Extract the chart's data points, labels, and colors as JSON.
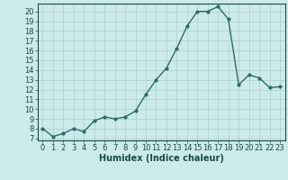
{
  "x": [
    0,
    1,
    2,
    3,
    4,
    5,
    6,
    7,
    8,
    9,
    10,
    11,
    12,
    13,
    14,
    15,
    16,
    17,
    18,
    19,
    20,
    21,
    22,
    23
  ],
  "y": [
    8.0,
    7.2,
    7.5,
    8.0,
    7.7,
    8.8,
    9.2,
    9.0,
    9.2,
    9.8,
    11.5,
    13.0,
    14.2,
    16.2,
    18.5,
    20.0,
    20.0,
    20.5,
    19.2,
    12.5,
    13.5,
    13.2,
    12.2,
    12.3
  ],
  "title": "",
  "xlabel": "Humidex (Indice chaleur)",
  "ylabel": "",
  "xlim": [
    -0.5,
    23.5
  ],
  "ylim": [
    6.8,
    20.8
  ],
  "yticks": [
    7,
    8,
    9,
    10,
    11,
    12,
    13,
    14,
    15,
    16,
    17,
    18,
    19,
    20
  ],
  "xticks": [
    0,
    1,
    2,
    3,
    4,
    5,
    6,
    7,
    8,
    9,
    10,
    11,
    12,
    13,
    14,
    15,
    16,
    17,
    18,
    19,
    20,
    21,
    22,
    23
  ],
  "line_color": "#2d6b6b",
  "marker": "o",
  "marker_size": 2.0,
  "bg_color": "#cceaea",
  "grid_color": "#aacece",
  "label_color": "#1a4a4a",
  "xlabel_fontsize": 7,
  "tick_fontsize": 6,
  "line_width": 1.0
}
